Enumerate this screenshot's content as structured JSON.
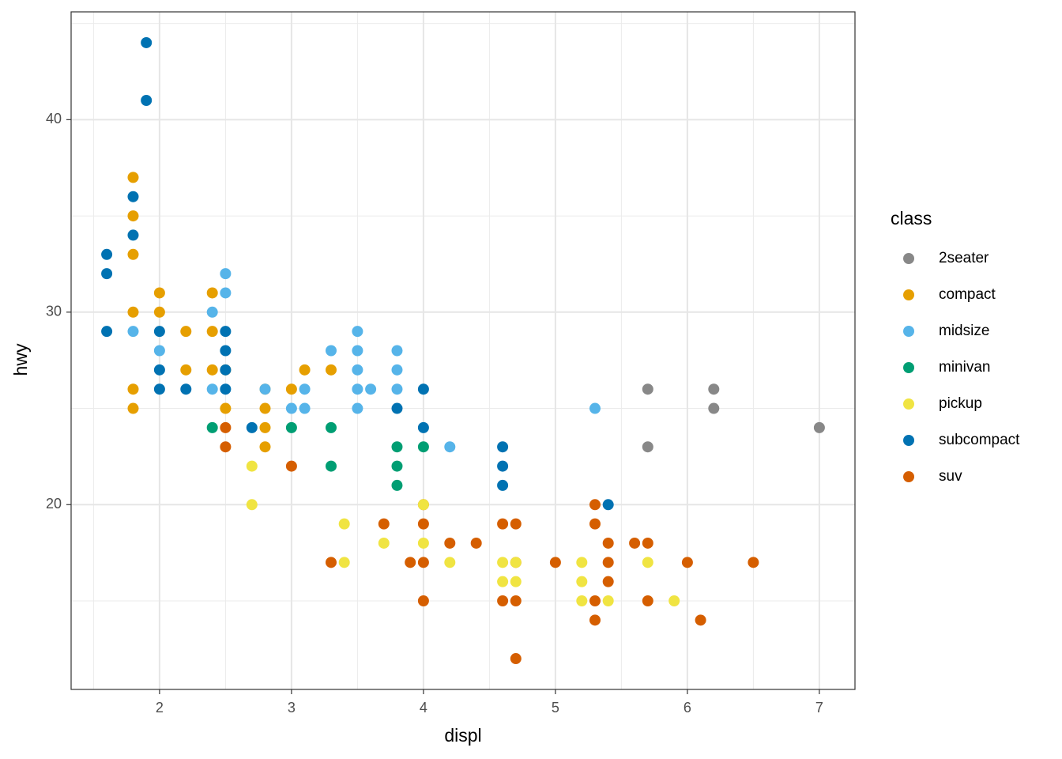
{
  "chart_data": {
    "type": "scatter",
    "x_label": "displ",
    "y_label": "hwy",
    "legend_title": "class",
    "legend_position": "right",
    "grid": true,
    "xlim": [
      1.33,
      7.27
    ],
    "xticks": [
      2,
      3,
      4,
      5,
      6,
      7
    ],
    "ylim": [
      10.4,
      45.6
    ],
    "yticks": [
      20,
      30,
      40
    ],
    "series": [
      {
        "name": "2seater",
        "color": "#888888",
        "x": [
          5.7,
          5.7,
          6.2,
          6.2,
          7.0
        ],
        "values": [
          26,
          23,
          26,
          25,
          24
        ]
      },
      {
        "name": "compact",
        "color": "#E69F00",
        "x": [
          1.8,
          1.8,
          1.8,
          1.8,
          1.8,
          1.8,
          2.0,
          2.0,
          2.2,
          2.2,
          2.4,
          2.4,
          2.4,
          2.5,
          2.5,
          2.8,
          2.8,
          2.8,
          2.8,
          3.0,
          3.1,
          3.3
        ],
        "values": [
          37,
          35,
          33,
          30,
          26,
          25,
          31,
          30,
          29,
          27,
          31,
          29,
          27,
          27,
          25,
          26,
          25,
          24,
          23,
          26,
          27,
          27
        ]
      },
      {
        "name": "midsize",
        "color": "#56B4E9",
        "x": [
          1.8,
          2.0,
          2.4,
          2.4,
          2.5,
          2.5,
          2.8,
          3.0,
          3.1,
          3.1,
          3.3,
          3.5,
          3.5,
          3.5,
          3.5,
          3.5,
          3.6,
          3.8,
          3.8,
          3.8,
          4.2,
          5.3
        ],
        "values": [
          29,
          28,
          30,
          26,
          32,
          31,
          26,
          25,
          26,
          25,
          28,
          29,
          28,
          27,
          26,
          25,
          26,
          28,
          27,
          26,
          23,
          25
        ]
      },
      {
        "name": "minivan",
        "color": "#009E73",
        "x": [
          2.4,
          3.0,
          3.3,
          3.3,
          3.8,
          3.8,
          3.8,
          4.0
        ],
        "values": [
          24,
          24,
          24,
          22,
          23,
          22,
          21,
          23
        ]
      },
      {
        "name": "subcompact",
        "color": "#0072B2",
        "x": [
          1.6,
          1.6,
          1.6,
          1.8,
          1.8,
          1.9,
          1.9,
          2.0,
          2.0,
          2.0,
          2.2,
          2.5,
          2.5,
          2.5,
          2.5,
          2.7,
          3.8,
          4.0,
          4.0,
          4.6,
          4.6,
          4.6,
          5.4
        ],
        "values": [
          33,
          32,
          29,
          36,
          34,
          44,
          41,
          29,
          27,
          26,
          26,
          29,
          28,
          27,
          26,
          24,
          25,
          26,
          24,
          23,
          22,
          21,
          20
        ]
      },
      {
        "name": "suv",
        "color": "#D55E00",
        "x": [
          2.5,
          2.5,
          3.0,
          3.3,
          3.7,
          3.9,
          4.0,
          4.0,
          4.0,
          4.0,
          4.2,
          4.4,
          4.6,
          4.6,
          4.7,
          4.7,
          4.7,
          4.7,
          5.0,
          5.3,
          5.3,
          5.3,
          5.3,
          5.4,
          5.4,
          5.4,
          5.6,
          5.7,
          5.7,
          6.0,
          6.1,
          6.5
        ],
        "values": [
          24,
          23,
          22,
          17,
          19,
          17,
          20,
          19,
          17,
          15,
          18,
          18,
          19,
          15,
          19,
          17,
          15,
          12,
          17,
          20,
          19,
          15,
          14,
          18,
          17,
          16,
          18,
          18,
          15,
          17,
          14,
          17
        ]
      },
      {
        "name": "pickup",
        "color": "#F0E442",
        "x": [
          2.7,
          2.7,
          3.4,
          3.4,
          3.7,
          4.0,
          4.0,
          4.2,
          4.6,
          4.6,
          4.7,
          4.7,
          5.2,
          5.2,
          5.2,
          5.4,
          5.7,
          5.9
        ],
        "values": [
          22,
          20,
          19,
          17,
          18,
          20,
          18,
          17,
          17,
          16,
          17,
          16,
          17,
          16,
          15,
          15,
          17,
          15
        ]
      }
    ]
  }
}
